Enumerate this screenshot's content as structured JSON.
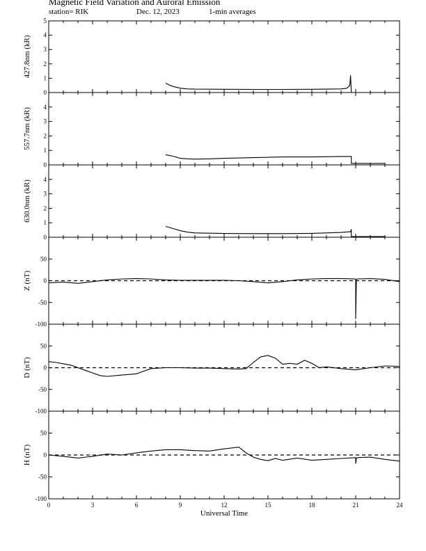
{
  "header": {
    "title": "Magnetic Field Variation and Auroral Emission",
    "station": "station= RIK",
    "date": "Dec. 12, 2023",
    "averaging": "1-min averages"
  },
  "chart_data": [
    {
      "type": "line",
      "ylabel": "427.8nm (kR)",
      "ylim": [
        0,
        5
      ],
      "yticks": [
        0,
        1,
        2,
        3,
        4,
        5
      ],
      "ytick_labels": [
        "0",
        "1",
        "2",
        "3",
        "4",
        "5"
      ],
      "xlim": [
        0,
        24
      ],
      "zero_line": false,
      "series": [
        {
          "x": [
            8.0,
            8.3,
            8.6,
            9.0,
            9.5,
            10,
            12,
            14,
            16,
            18,
            19,
            20,
            20.4,
            20.6,
            20.65,
            20.7
          ],
          "y": [
            0.65,
            0.5,
            0.4,
            0.3,
            0.25,
            0.24,
            0.23,
            0.22,
            0.22,
            0.23,
            0.24,
            0.25,
            0.3,
            0.5,
            1.2,
            0.0
          ]
        }
      ]
    },
    {
      "type": "line",
      "ylabel": "557.7nm (kR)",
      "ylim": [
        0,
        5
      ],
      "yticks": [
        0,
        1,
        2,
        3,
        4
      ],
      "ytick_labels": [
        "0",
        "1",
        "2",
        "3",
        "4"
      ],
      "xlim": [
        0,
        24
      ],
      "zero_line": false,
      "series": [
        {
          "x": [
            8.0,
            8.5,
            9.0,
            9.5,
            10,
            11,
            12,
            14,
            16,
            18,
            20,
            20.7,
            20.7,
            23.0
          ],
          "y": [
            0.7,
            0.6,
            0.45,
            0.42,
            0.4,
            0.42,
            0.45,
            0.5,
            0.55,
            0.55,
            0.58,
            0.58,
            0.1,
            0.1
          ]
        }
      ]
    },
    {
      "type": "line",
      "ylabel": "630.0nm (kR)",
      "ylim": [
        0,
        5
      ],
      "yticks": [
        0,
        1,
        2,
        3,
        4
      ],
      "ytick_labels": [
        "0",
        "1",
        "2",
        "3",
        "4"
      ],
      "xlim": [
        0,
        24
      ],
      "zero_line": false,
      "series": [
        {
          "x": [
            8.0,
            8.5,
            9.0,
            9.5,
            10,
            11,
            12,
            14,
            16,
            18,
            19,
            20,
            20.65,
            20.7,
            20.7,
            23.0
          ],
          "y": [
            0.75,
            0.6,
            0.45,
            0.35,
            0.3,
            0.28,
            0.26,
            0.25,
            0.25,
            0.27,
            0.3,
            0.33,
            0.38,
            0.55,
            0.05,
            0.05
          ]
        }
      ]
    },
    {
      "type": "line",
      "ylabel": "Z (nT)",
      "ylim": [
        -100,
        100
      ],
      "yticks": [
        -100,
        -50,
        0,
        50
      ],
      "ytick_labels": [
        "-100",
        "-50",
        "0",
        "50"
      ],
      "xlim": [
        0,
        24
      ],
      "zero_line": true,
      "series": [
        {
          "x": [
            0,
            1,
            2,
            3,
            4,
            5,
            6,
            7,
            8,
            9,
            10,
            11,
            12,
            13,
            14,
            15,
            16,
            17,
            18,
            19,
            20,
            21,
            21.0,
            21.05,
            21.1,
            22,
            23,
            24
          ],
          "y": [
            -5,
            -3,
            -6,
            -2,
            2,
            4,
            5,
            4,
            2,
            1,
            1,
            1,
            1,
            0,
            -2,
            -5,
            -2,
            2,
            4,
            5,
            5,
            4,
            -88,
            2,
            4,
            5,
            3,
            -2
          ]
        }
      ]
    },
    {
      "type": "line",
      "ylabel": "D (nT)",
      "ylim": [
        -100,
        100
      ],
      "yticks": [
        -100,
        -50,
        0,
        50
      ],
      "ytick_labels": [
        "-100",
        "-50",
        "0",
        "50"
      ],
      "xlim": [
        0,
        24
      ],
      "zero_line": true,
      "series": [
        {
          "x": [
            0,
            0.5,
            1,
            1.5,
            2,
            2.5,
            3,
            3.5,
            4,
            5,
            6,
            6.5,
            7,
            8,
            9,
            10,
            11,
            12,
            13,
            13.5,
            14,
            14.5,
            15,
            15.5,
            16,
            16.5,
            17,
            17.5,
            18,
            18.5,
            19,
            20,
            21,
            22,
            23,
            24
          ],
          "y": [
            14,
            12,
            9,
            6,
            0,
            -6,
            -12,
            -18,
            -20,
            -17,
            -14,
            -8,
            -2,
            0,
            0,
            -1,
            -1,
            -2,
            -3,
            -2,
            12,
            25,
            28,
            22,
            8,
            10,
            8,
            17,
            10,
            0,
            2,
            -2,
            -5,
            0,
            4,
            3
          ]
        }
      ]
    },
    {
      "type": "line",
      "ylabel": "H (nT)",
      "ylim": [
        -100,
        100
      ],
      "yticks": [
        -100,
        -50,
        0,
        50
      ],
      "ytick_labels": [
        "-100",
        "-50",
        "0",
        "50"
      ],
      "xlim": [
        0,
        24
      ],
      "zero_line": true,
      "series": [
        {
          "x": [
            0,
            1,
            2,
            3,
            4,
            5,
            6,
            7,
            8,
            9,
            10,
            11,
            12,
            13,
            13.5,
            14,
            14.5,
            15,
            15.5,
            16,
            17,
            18,
            19,
            20,
            21,
            21.0,
            21.05,
            21.1,
            22,
            23,
            24
          ],
          "y": [
            0,
            -3,
            -7,
            -3,
            2,
            0,
            5,
            9,
            12,
            12,
            10,
            9,
            14,
            18,
            5,
            -5,
            -10,
            -13,
            -8,
            -12,
            -7,
            -12,
            -10,
            -8,
            -6,
            -20,
            -8,
            -6,
            -5,
            -10,
            -14
          ]
        }
      ]
    }
  ],
  "x_axis": {
    "label": "Universal Time",
    "ticks": [
      0,
      3,
      6,
      9,
      12,
      15,
      18,
      21,
      24
    ],
    "tick_labels": [
      "0",
      "3",
      "6",
      "9",
      "12",
      "15",
      "18",
      "21",
      "24"
    ]
  }
}
